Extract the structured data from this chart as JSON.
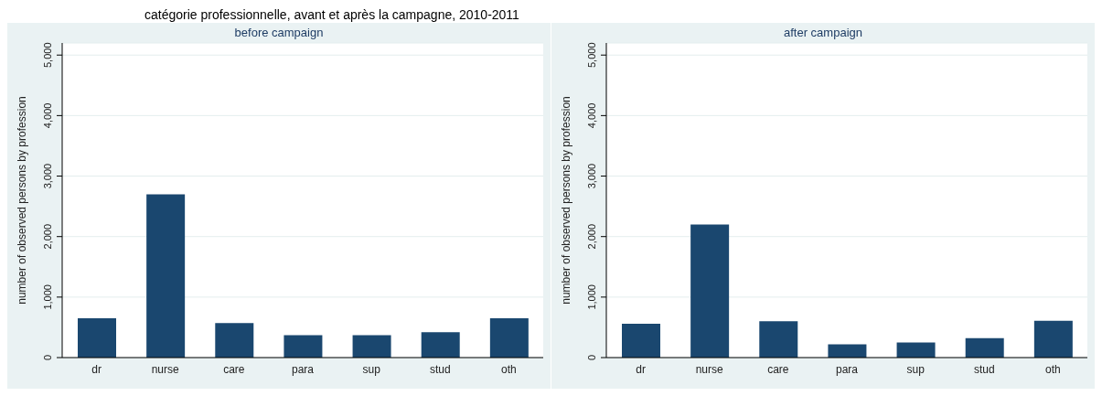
{
  "chart_data": [
    {
      "type": "bar",
      "title": "before campaign",
      "ylabel": "number of observed persons by profession",
      "annotations": [
        "catégorie professionnelle, avant et après la campagne, 2010-2011"
      ],
      "categories": [
        "dr",
        "nurse",
        "care",
        "para",
        "sup",
        "stud",
        "oth"
      ],
      "values": [
        650,
        2700,
        570,
        370,
        370,
        420,
        650
      ],
      "color": "#1a476f",
      "ylim": [
        0,
        5200
      ],
      "yticks": [
        0,
        {
          "value": 1000,
          "label": "1,000"
        },
        {
          "value": 2000,
          "label": "2,000"
        },
        {
          "value": 3000,
          "label": "3,000"
        },
        {
          "value": 4000,
          "label": "4,000"
        },
        {
          "value": 5000,
          "label": "5,000"
        }
      ],
      "grid": "y"
    },
    {
      "type": "bar",
      "title": "after campaign",
      "ylabel": "number of observed persons by profession",
      "categories": [
        "dr",
        "nurse",
        "care",
        "para",
        "sup",
        "stud",
        "oth"
      ],
      "values": [
        560,
        2200,
        600,
        220,
        250,
        320,
        610
      ],
      "color": "#1a476f",
      "ylim": [
        0,
        5200
      ],
      "yticks": [
        0,
        {
          "value": 1000,
          "label": "1,000"
        },
        {
          "value": 2000,
          "label": "2,000"
        },
        {
          "value": 3000,
          "label": "3,000"
        },
        {
          "value": 4000,
          "label": "4,000"
        },
        {
          "value": 5000,
          "label": "5,000"
        }
      ],
      "grid": "y"
    }
  ]
}
